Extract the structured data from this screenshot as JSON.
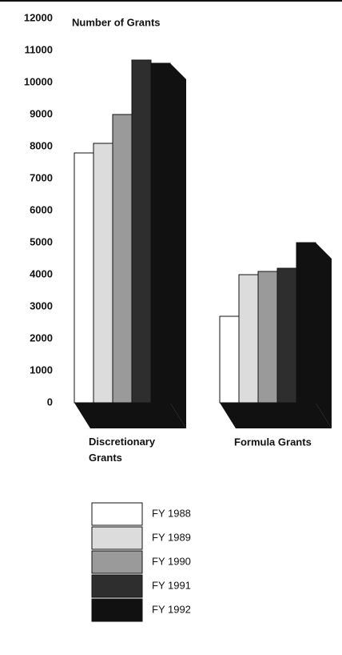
{
  "chart_data": {
    "type": "bar",
    "title": "Number of Grants",
    "categories": [
      "Discretionary Grants",
      "Formula Grants"
    ],
    "series": [
      {
        "name": "FY 1988",
        "color": "#ffffff",
        "values": [
          7800,
          2700
        ]
      },
      {
        "name": "FY 1989",
        "color": "#dcdcdc",
        "values": [
          8100,
          4000
        ]
      },
      {
        "name": "FY 1990",
        "color": "#9a9a9a",
        "values": [
          9000,
          4100
        ]
      },
      {
        "name": "FY 1991",
        "color": "#2e2e2e",
        "values": [
          10700,
          4200
        ]
      },
      {
        "name": "FY 1992",
        "color": "#111111",
        "values": [
          10600,
          5000
        ]
      }
    ],
    "ylim": [
      0,
      12000
    ],
    "yticks": [
      0,
      1000,
      2000,
      3000,
      4000,
      5000,
      6000,
      7000,
      8000,
      9000,
      10000,
      11000,
      12000
    ],
    "grid": false
  }
}
